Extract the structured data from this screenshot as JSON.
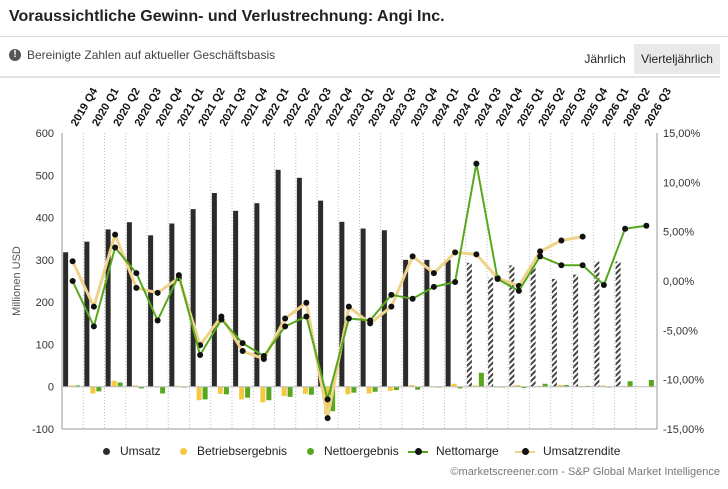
{
  "header": {
    "title": "Voraussichtliche Gewinn- und Verlustrechnung: Angi Inc.",
    "subtitle": "Bereinigte Zahlen auf aktueller Geschäftsbasis",
    "info_icon": "info-icon",
    "tab_annual": "Jährlich",
    "tab_quarterly": "Vierteljährlich",
    "active_tab": "Vierteljährlich"
  },
  "credit": "©marketscreener.com - S&P Global Market Intelligence",
  "colors": {
    "revenue": "#2b2b2b",
    "operating": "#f5c842",
    "net_income": "#58a81e",
    "net_margin": "#58a81e",
    "sales_yield": "#f0d38a",
    "marker": "#111111"
  },
  "chart_data": {
    "type": "bar",
    "ylabel": "Millionen USD",
    "ylim": [
      -100,
      600
    ],
    "y_ticks": [
      "600",
      "500",
      "400",
      "300",
      "200",
      "100",
      "0",
      "-100"
    ],
    "y2lim": [
      -15,
      15
    ],
    "y2_ticks": [
      "15,00%",
      "10,00%",
      "5,00%",
      "0,00%",
      "-5,00%",
      "-10,00%",
      "-15,00%"
    ],
    "grid": true,
    "legend_position": "bottom",
    "categories": [
      "2019 Q4",
      "2020 Q1",
      "2020 Q2",
      "2020 Q3",
      "2020 Q4",
      "2021 Q1",
      "2021 Q2",
      "2021 Q3",
      "2021 Q4",
      "2022 Q1",
      "2022 Q2",
      "2022 Q3",
      "2022 Q4",
      "2023 Q1",
      "2023 Q2",
      "2023 Q3",
      "2023 Q4",
      "2024 Q1",
      "2024 Q2",
      "2024 Q3",
      "2024 Q4",
      "2025 Q1",
      "2025 Q2",
      "2025 Q3",
      "2025 Q4",
      "2026 Q1",
      "2026 Q2",
      "2026 Q3"
    ],
    "forecast_from_index": 19,
    "series": [
      {
        "name": "Umsatz",
        "kind": "bar",
        "axis": "left",
        "values": [
          318,
          343,
          372,
          389,
          358,
          386,
          420,
          458,
          416,
          434,
          513,
          494,
          440,
          390,
          374,
          370,
          300,
          300,
          300,
          293,
          258,
          287,
          285,
          255,
          265,
          296,
          296,
          null
        ]
      },
      {
        "name": "Betriebsergebnis",
        "kind": "bar",
        "axis": "left",
        "values": [
          3,
          -16,
          14,
          3,
          -2,
          2,
          -32,
          -17,
          -30,
          -37,
          -22,
          -17,
          -65,
          -18,
          -16,
          -10,
          4,
          0,
          7,
          3,
          -2,
          4,
          2,
          4,
          2,
          3,
          2,
          null
        ]
      },
      {
        "name": "Nettoergebnis",
        "kind": "bar",
        "axis": "left",
        "values": [
          3,
          -11,
          10,
          -4,
          -16,
          -2,
          -30,
          -18,
          -26,
          -32,
          -24,
          -19,
          -58,
          -14,
          -12,
          -8,
          -7,
          -2,
          -4,
          33,
          0,
          -3,
          7,
          4,
          2,
          0,
          13,
          16
        ]
      },
      {
        "name": "Nettomarge",
        "kind": "line",
        "axis": "right",
        "values": [
          0.0,
          -4.6,
          3.4,
          0.8,
          -4.0,
          0.6,
          -7.5,
          -3.9,
          -6.3,
          -7.6,
          -4.6,
          -3.6,
          -12.0,
          -3.8,
          -4.0,
          -1.4,
          -1.8,
          -0.6,
          -0.1,
          11.9,
          0.2,
          -1.0,
          2.5,
          1.6,
          1.6,
          -0.4,
          5.3,
          5.6
        ]
      },
      {
        "name": "Umsatzrendite",
        "kind": "line",
        "axis": "right",
        "values": [
          2.0,
          -2.6,
          4.7,
          -0.7,
          -1.2,
          0.3,
          -6.5,
          -3.6,
          -7.1,
          -7.9,
          -3.8,
          -2.2,
          -13.9,
          -2.6,
          -4.3,
          -2.6,
          2.5,
          0.8,
          2.9,
          2.7,
          0.3,
          -0.5,
          3.0,
          4.1,
          4.5,
          null,
          null,
          null
        ]
      }
    ]
  }
}
